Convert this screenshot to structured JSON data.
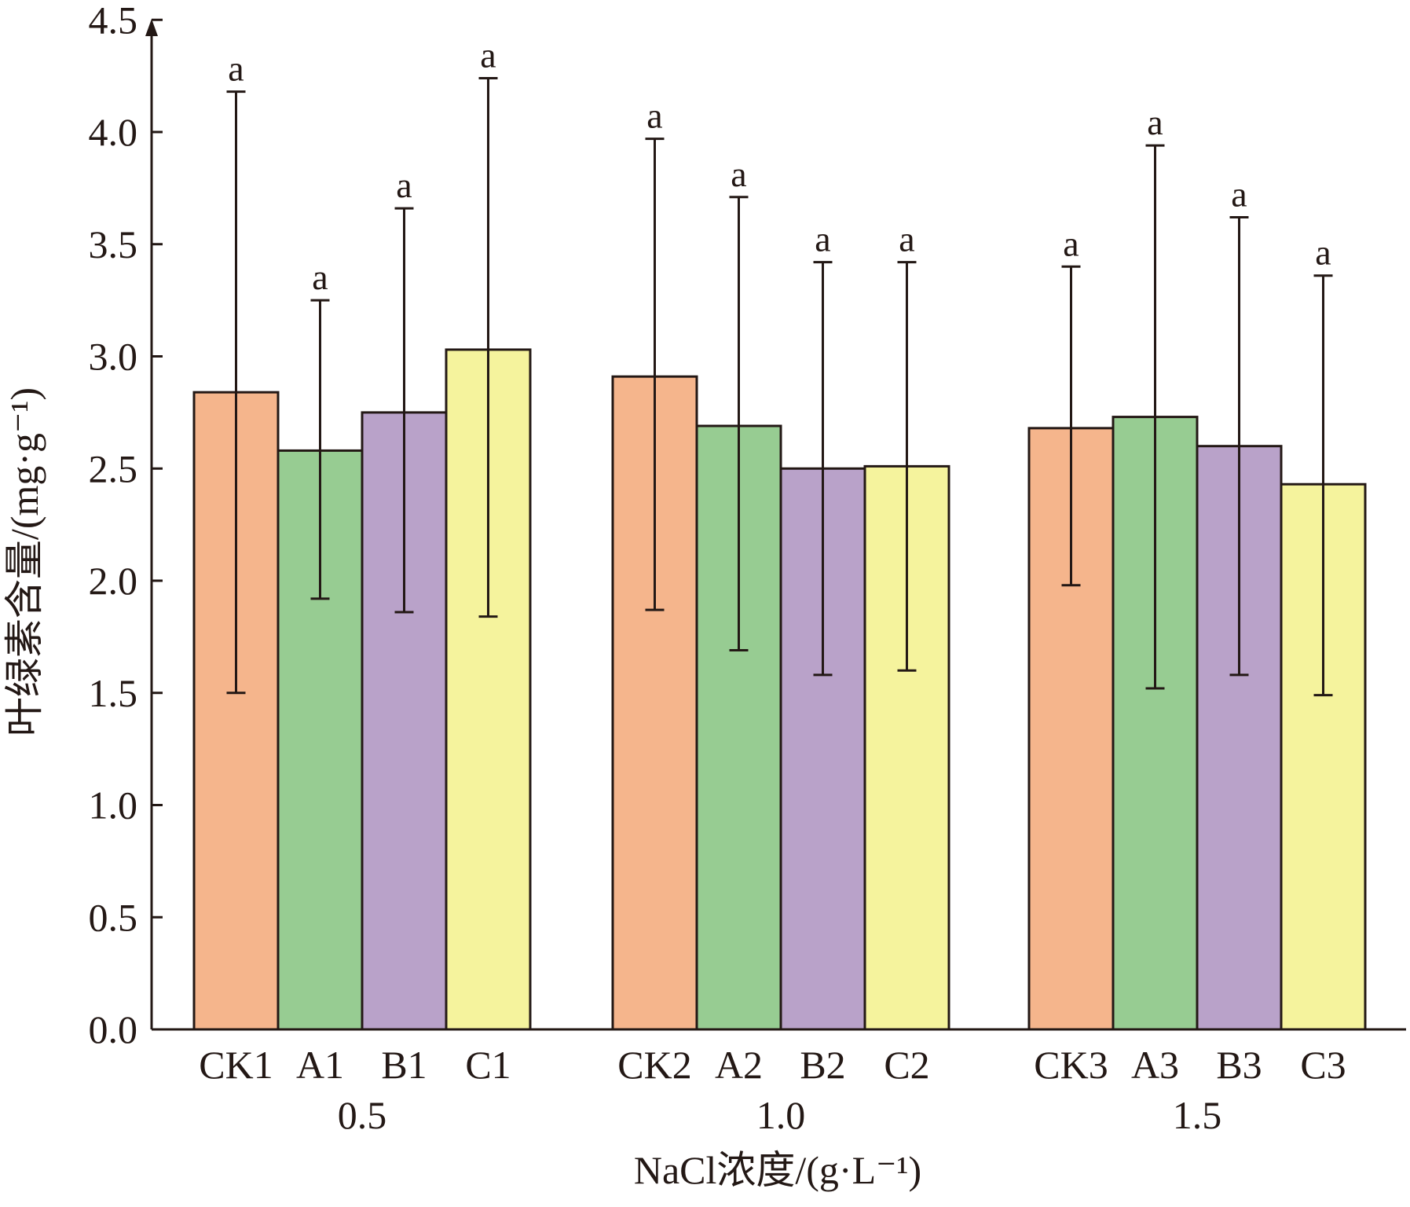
{
  "chart_data": {
    "type": "bar",
    "title": "",
    "xlabel": "NaCl浓度/(g·L⁻¹)",
    "ylabel": "叶绿素含量/(mg·g⁻¹)",
    "ylim": [
      0,
      4.5
    ],
    "yticks": [
      "0.0",
      "0.5",
      "1.0",
      "1.5",
      "2.0",
      "2.5",
      "3.0",
      "3.5",
      "4.0",
      "4.5"
    ],
    "groups": [
      {
        "label": "0.5",
        "bars": [
          {
            "label": "CK1",
            "value": 2.84,
            "err_low": 1.5,
            "err_high": 4.18,
            "sig": "a"
          },
          {
            "label": "A1",
            "value": 2.58,
            "err_low": 1.92,
            "err_high": 3.25,
            "sig": "a"
          },
          {
            "label": "B1",
            "value": 2.75,
            "err_low": 1.86,
            "err_high": 3.66,
            "sig": "a"
          },
          {
            "label": "C1",
            "value": 3.03,
            "err_low": 1.84,
            "err_high": 4.24,
            "sig": "a"
          }
        ]
      },
      {
        "label": "1.0",
        "bars": [
          {
            "label": "CK2",
            "value": 2.91,
            "err_low": 1.87,
            "err_high": 3.97,
            "sig": "a"
          },
          {
            "label": "A2",
            "value": 2.69,
            "err_low": 1.69,
            "err_high": 3.71,
            "sig": "a"
          },
          {
            "label": "B2",
            "value": 2.5,
            "err_low": 1.58,
            "err_high": 3.42,
            "sig": "a"
          },
          {
            "label": "C2",
            "value": 2.51,
            "err_low": 1.6,
            "err_high": 3.42,
            "sig": "a"
          }
        ]
      },
      {
        "label": "1.5",
        "bars": [
          {
            "label": "CK3",
            "value": 2.68,
            "err_low": 1.98,
            "err_high": 3.4,
            "sig": "a"
          },
          {
            "label": "A3",
            "value": 2.73,
            "err_low": 1.52,
            "err_high": 3.94,
            "sig": "a"
          },
          {
            "label": "B3",
            "value": 2.6,
            "err_low": 1.58,
            "err_high": 3.62,
            "sig": "a"
          },
          {
            "label": "C3",
            "value": 2.43,
            "err_low": 1.49,
            "err_high": 3.36,
            "sig": "a"
          }
        ]
      }
    ],
    "colors": [
      "#f5b58c",
      "#97cc92",
      "#b9a2c9",
      "#f5f39d"
    ],
    "grid": false,
    "legend": "none"
  }
}
